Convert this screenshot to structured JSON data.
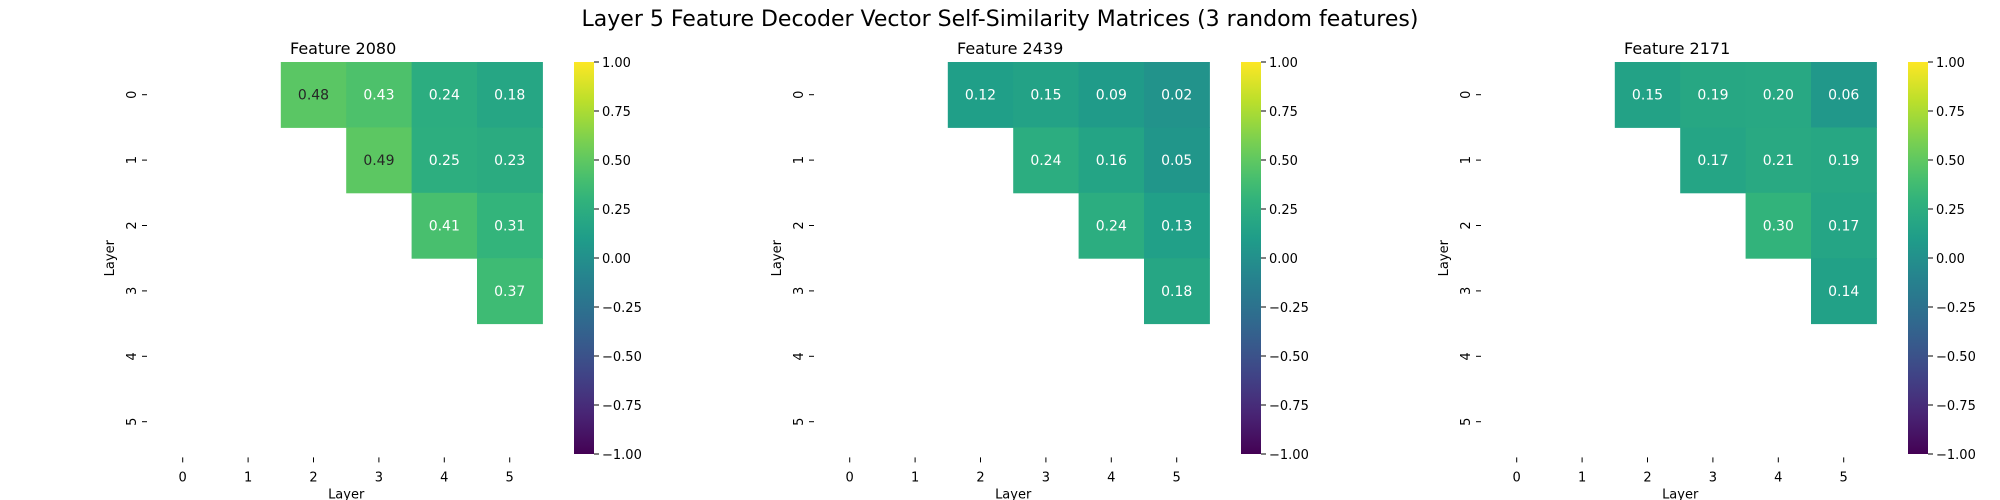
{
  "figure": {
    "title": "Layer 5 Feature Decoder Vector Self-Similarity Matrices (3 random features)"
  },
  "colormap": "viridis",
  "chart_data": [
    {
      "type": "heatmap",
      "title": "Feature 2080",
      "xlabel": "Layer",
      "ylabel": "Layer",
      "x_categories": [
        "0",
        "1",
        "2",
        "3",
        "4",
        "5"
      ],
      "y_categories": [
        "0",
        "1",
        "2",
        "3",
        "4",
        "5"
      ],
      "values": [
        [
          null,
          null,
          0.48,
          0.43,
          0.24,
          0.18
        ],
        [
          null,
          null,
          null,
          0.49,
          0.25,
          0.23
        ],
        [
          null,
          null,
          null,
          null,
          0.41,
          0.31
        ],
        [
          null,
          null,
          null,
          null,
          null,
          0.37
        ],
        [
          null,
          null,
          null,
          null,
          null,
          null
        ],
        [
          null,
          null,
          null,
          null,
          null,
          null
        ]
      ],
      "value_labels": [
        [
          null,
          null,
          "0.48",
          "0.43",
          "0.24",
          "0.18"
        ],
        [
          null,
          null,
          null,
          "0.49",
          "0.25",
          "0.23"
        ],
        [
          null,
          null,
          null,
          null,
          "0.41",
          "0.31"
        ],
        [
          null,
          null,
          null,
          null,
          null,
          "0.37"
        ],
        [
          null,
          null,
          null,
          null,
          null,
          null
        ],
        [
          null,
          null,
          null,
          null,
          null,
          null
        ]
      ],
      "vmin": -1.0,
      "vmax": 1.0,
      "colorbar_ticks": [
        "1.00",
        "0.75",
        "0.50",
        "0.25",
        "0.00",
        "−0.25",
        "−0.50",
        "−0.75",
        "−1.00"
      ]
    },
    {
      "type": "heatmap",
      "title": "Feature 2439",
      "xlabel": "Layer",
      "ylabel": "Layer",
      "x_categories": [
        "0",
        "1",
        "2",
        "3",
        "4",
        "5"
      ],
      "y_categories": [
        "0",
        "1",
        "2",
        "3",
        "4",
        "5"
      ],
      "values": [
        [
          null,
          null,
          0.12,
          0.15,
          0.09,
          0.02
        ],
        [
          null,
          null,
          null,
          0.24,
          0.16,
          0.05
        ],
        [
          null,
          null,
          null,
          null,
          0.24,
          0.13
        ],
        [
          null,
          null,
          null,
          null,
          null,
          0.18
        ],
        [
          null,
          null,
          null,
          null,
          null,
          null
        ],
        [
          null,
          null,
          null,
          null,
          null,
          null
        ]
      ],
      "value_labels": [
        [
          null,
          null,
          "0.12",
          "0.15",
          "0.09",
          "0.02"
        ],
        [
          null,
          null,
          null,
          "0.24",
          "0.16",
          "0.05"
        ],
        [
          null,
          null,
          null,
          null,
          "0.24",
          "0.13"
        ],
        [
          null,
          null,
          null,
          null,
          null,
          "0.18"
        ],
        [
          null,
          null,
          null,
          null,
          null,
          null
        ],
        [
          null,
          null,
          null,
          null,
          null,
          null
        ]
      ],
      "vmin": -1.0,
      "vmax": 1.0,
      "colorbar_ticks": [
        "1.00",
        "0.75",
        "0.50",
        "0.25",
        "0.00",
        "−0.25",
        "−0.50",
        "−0.75",
        "−1.00"
      ]
    },
    {
      "type": "heatmap",
      "title": "Feature 2171",
      "xlabel": "Layer",
      "ylabel": "Layer",
      "x_categories": [
        "0",
        "1",
        "2",
        "3",
        "4",
        "5"
      ],
      "y_categories": [
        "0",
        "1",
        "2",
        "3",
        "4",
        "5"
      ],
      "values": [
        [
          null,
          null,
          0.15,
          0.19,
          0.2,
          0.06
        ],
        [
          null,
          null,
          null,
          0.17,
          0.21,
          0.19
        ],
        [
          null,
          null,
          null,
          null,
          0.3,
          0.17
        ],
        [
          null,
          null,
          null,
          null,
          null,
          0.14
        ],
        [
          null,
          null,
          null,
          null,
          null,
          null
        ],
        [
          null,
          null,
          null,
          null,
          null,
          null
        ]
      ],
      "value_labels": [
        [
          null,
          null,
          "0.15",
          "0.19",
          "0.20",
          "0.06"
        ],
        [
          null,
          null,
          null,
          "0.17",
          "0.21",
          "0.19"
        ],
        [
          null,
          null,
          null,
          null,
          "0.30",
          "0.17"
        ],
        [
          null,
          null,
          null,
          null,
          null,
          "0.14"
        ],
        [
          null,
          null,
          null,
          null,
          null,
          null
        ],
        [
          null,
          null,
          null,
          null,
          null,
          null
        ]
      ],
      "vmin": -1.0,
      "vmax": 1.0,
      "colorbar_ticks": [
        "1.00",
        "0.75",
        "0.50",
        "0.25",
        "0.00",
        "−0.25",
        "−0.50",
        "−0.75",
        "−1.00"
      ]
    }
  ]
}
